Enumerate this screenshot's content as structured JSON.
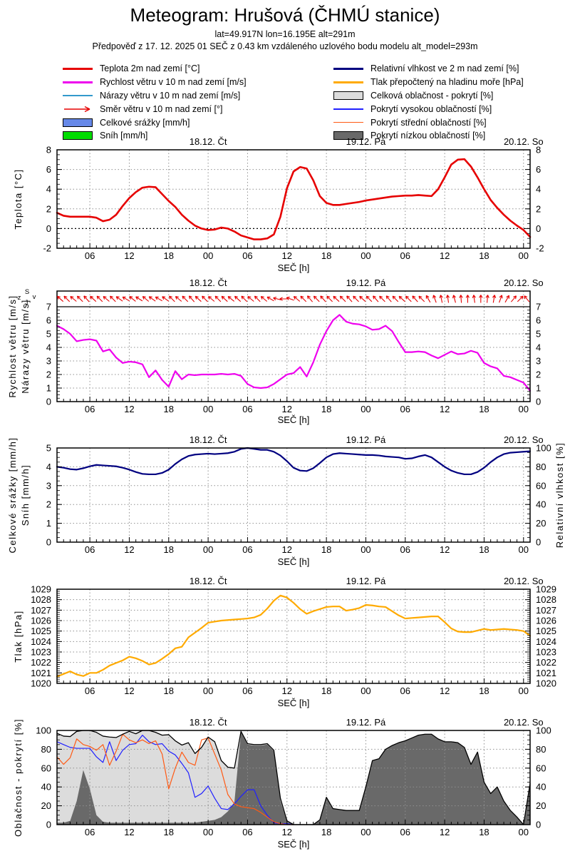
{
  "header": {
    "title": "Meteogram: Hrušová (ČHMÚ stanice)",
    "subtitle1": "lat=49.917N lon=16.195E alt=291m",
    "subtitle2": "Předpověď z 17. 12. 2025 01 SEČ z 0.43 km vzdáleného uzlového bodu modelu alt_model=293m"
  },
  "legend": {
    "left": [
      {
        "key": "temperature-2m",
        "label": "Teplota 2m nad zemí [°C]",
        "type": "line",
        "color": "#e60000",
        "thick": true
      },
      {
        "key": "wind-speed-10m",
        "label": "Rychlost větru v 10 m nad zemí [m/s]",
        "type": "line",
        "color": "#ee00ee",
        "thick": true
      },
      {
        "key": "wind-gusts-10m",
        "label": "Nárazy větru v 10 m nad zemí [m/s]",
        "type": "line",
        "color": "#3399cc",
        "thick": false
      },
      {
        "key": "wind-direction-10m",
        "label": "Směr větru v 10 m nad zemí [°]",
        "type": "arrow",
        "color": "#e60000"
      },
      {
        "key": "total-precipitation",
        "label": "Celkové srážky [mm/h]",
        "type": "box",
        "color": "#6688e8"
      },
      {
        "key": "snow",
        "label": "Sníh [mm/h]",
        "type": "box",
        "color": "#00dd00"
      }
    ],
    "right": [
      {
        "key": "relative-humidity-2m",
        "label": "Relativní vlhkost ve 2 m nad zemí [%]",
        "type": "line",
        "color": "#000080",
        "thick": true
      },
      {
        "key": "sea-level-pressure",
        "label": "Tlak přepočtený na hladinu moře [hPa]",
        "type": "line",
        "color": "#ffaa00",
        "thick": true
      },
      {
        "key": "total-cloud-cover",
        "label": "Celková oblačnost - pokrytí [%]",
        "type": "box",
        "color": "#dcdcdc"
      },
      {
        "key": "high-cloud-cover",
        "label": "Pokrytí vysokou oblačností [%]",
        "type": "line",
        "color": "#2020ff",
        "thick": false
      },
      {
        "key": "middle-cloud-cover",
        "label": "Pokrytí střední oblačností [%]",
        "type": "line",
        "color": "#ff5a14",
        "thick": false
      },
      {
        "key": "low-cloud-cover",
        "label": "Pokrytí nízkou oblačností [%]",
        "type": "box",
        "color": "#696969"
      }
    ]
  },
  "time_axis": {
    "xlabel": "SEČ [h]",
    "hours_total": 72,
    "tick_labels": [
      "06",
      "12",
      "18",
      "00",
      "06",
      "12",
      "18",
      "00",
      "06",
      "12",
      "18",
      "00"
    ],
    "day_labels": [
      {
        "label": "18.12. Čt",
        "hour": 23
      },
      {
        "label": "19.12. Pá",
        "hour": 47
      },
      {
        "label": "20.12. So",
        "hour": 71
      }
    ]
  },
  "chart_data": [
    {
      "name": "temperature",
      "type": "line",
      "ylabel_left": [
        "Teplota [°C]"
      ],
      "ylim": [
        -2,
        8
      ],
      "yticks": [
        -2,
        0,
        2,
        4,
        6,
        8
      ],
      "grid_y": [
        2,
        4,
        6
      ],
      "zero_line": 0,
      "series": [
        {
          "key": "temperature-2m",
          "name": "Teplota 2m nad zemí [°C]",
          "color": "#e60000",
          "width": 2.6,
          "start_h": 0,
          "step_h": 1,
          "values": [
            1.6,
            1.3,
            1.2,
            1.2,
            1.2,
            1.2,
            1.1,
            0.75,
            0.9,
            1.4,
            2.3,
            3.1,
            3.7,
            4.15,
            4.25,
            4.2,
            3.5,
            2.8,
            2.2,
            1.4,
            0.8,
            0.3,
            0.0,
            -0.15,
            -0.1,
            0.1,
            0.0,
            -0.3,
            -0.7,
            -0.9,
            -1.1,
            -1.1,
            -1.0,
            -0.6,
            1.2,
            4.1,
            5.8,
            6.25,
            6.1,
            4.9,
            3.3,
            2.6,
            2.4,
            2.4,
            2.5,
            2.6,
            2.7,
            2.85,
            2.95,
            3.05,
            3.15,
            3.25,
            3.3,
            3.35,
            3.35,
            3.4,
            3.35,
            3.3,
            4.0,
            5.2,
            6.5,
            7.0,
            7.05,
            6.3,
            5.2,
            4.0,
            2.9,
            2.1,
            1.4,
            0.8,
            0.3,
            -0.15,
            -0.85
          ]
        }
      ]
    },
    {
      "name": "wind",
      "type": "line",
      "ylabel_left": [
        "Rychlost větru [m/s]",
        "Nárazy větru [m/s]"
      ],
      "ylim": [
        0,
        7
      ],
      "yticks": [
        0,
        1,
        2,
        3,
        4,
        5,
        6,
        7
      ],
      "grid_y": [
        1,
        2,
        3,
        4,
        5,
        6
      ],
      "top_line": 7,
      "compass": {
        "n": "S",
        "s": "J",
        "e": "v",
        "w": "z"
      },
      "wind_dir_deg": [
        -48,
        -45,
        -50,
        -45,
        -42,
        -48,
        -45,
        -50,
        -45,
        -55,
        -60,
        -52,
        -58,
        -50,
        -55,
        -60,
        -55,
        -45,
        -50,
        -45,
        -42,
        -48,
        -45,
        -50,
        -45,
        -48,
        -52,
        -48,
        -45,
        -50,
        -45,
        -50,
        -60,
        -75,
        -90,
        -70,
        -50,
        -45,
        -40,
        -45,
        -42,
        -45,
        -48,
        -45,
        -42,
        -45,
        -48,
        -45,
        -42,
        -45,
        -40,
        -45,
        -48,
        -45,
        -42,
        -45,
        -30,
        -20,
        -12,
        -8,
        -15,
        -5,
        0,
        -8,
        0,
        5,
        10,
        20,
        30,
        40,
        45,
        -40
      ],
      "series": [
        {
          "key": "wind-speed-10m",
          "name": "Rychlost větru v 10 m nad zemí [m/s]",
          "color": "#ee00ee",
          "width": 2.2,
          "start_h": 0,
          "step_h": 1,
          "values": [
            5.6,
            5.35,
            5.0,
            4.45,
            4.55,
            4.6,
            4.5,
            3.7,
            3.85,
            3.25,
            2.85,
            2.95,
            2.9,
            2.75,
            1.8,
            2.3,
            1.6,
            1.1,
            2.25,
            1.65,
            2.0,
            1.95,
            2.0,
            2.0,
            2.0,
            2.05,
            2.0,
            2.05,
            1.9,
            1.3,
            1.05,
            1.0,
            1.05,
            1.3,
            1.65,
            2.0,
            2.1,
            2.55,
            1.85,
            2.9,
            4.2,
            5.2,
            6.0,
            6.4,
            5.9,
            5.75,
            5.7,
            5.55,
            5.3,
            5.35,
            5.6,
            5.2,
            4.4,
            3.65,
            3.65,
            3.7,
            3.65,
            3.4,
            3.2,
            3.45,
            3.7,
            3.5,
            3.55,
            3.75,
            3.6,
            2.85,
            2.6,
            2.45,
            1.9,
            1.8,
            1.6,
            1.4,
            0.8
          ]
        }
      ]
    },
    {
      "name": "precipitation-humidity",
      "type": "line",
      "ylabel_left": [
        "Celkové srážky [mm/h]",
        "Sníh [mm/h]"
      ],
      "ylabel_right": "Relativní vlhkost [%]",
      "ylim": [
        0,
        5
      ],
      "ylim_right": [
        0,
        100
      ],
      "yticks": [
        0,
        1,
        2,
        3,
        4,
        5
      ],
      "yticks_right": [
        0,
        20,
        40,
        60,
        80,
        100
      ],
      "grid_y": [
        1,
        2,
        3,
        4
      ],
      "series": [
        {
          "key": "relative-humidity-2m",
          "name": "Relativní vlhkost ve 2 m nad zemí [%]",
          "axis": "right",
          "color": "#000080",
          "width": 2.2,
          "start_h": 0,
          "step_h": 1,
          "values": [
            80,
            79,
            77.5,
            77,
            78.5,
            80.5,
            82,
            81.5,
            81,
            80.5,
            79,
            77,
            74.5,
            72.5,
            72,
            72,
            73.5,
            77,
            83,
            88,
            91.5,
            93,
            93.5,
            94,
            93.5,
            94,
            94.5,
            96,
            99,
            100,
            99,
            98,
            98,
            96,
            92,
            86,
            79,
            76,
            75.5,
            78.5,
            84,
            90,
            93.5,
            94.5,
            94,
            93.5,
            93,
            92.5,
            92.5,
            92,
            91,
            90.5,
            90,
            88.5,
            89,
            91,
            92.5,
            90,
            85,
            80,
            76,
            73.5,
            72,
            72,
            74.5,
            79,
            85,
            90,
            93.5,
            95,
            95.5,
            96,
            96.5
          ]
        }
      ]
    },
    {
      "name": "pressure",
      "type": "line",
      "ylabel_left": [
        "Tlak [hPa]"
      ],
      "ylim": [
        1020,
        1029
      ],
      "yticks": [
        1020,
        1021,
        1022,
        1023,
        1024,
        1025,
        1026,
        1027,
        1028,
        1029
      ],
      "grid_y": [
        1021,
        1022,
        1023,
        1024,
        1025,
        1026,
        1027,
        1028
      ],
      "series": [
        {
          "key": "sea-level-pressure",
          "name": "Tlak přepočtený na hladinu moře [hPa]",
          "color": "#ffaa00",
          "width": 2.2,
          "start_h": 0,
          "step_h": 1,
          "values": [
            1020.65,
            1020.9,
            1021.15,
            1020.85,
            1020.7,
            1021.0,
            1021.0,
            1021.3,
            1021.7,
            1021.95,
            1022.2,
            1022.55,
            1022.4,
            1022.15,
            1021.8,
            1021.95,
            1022.35,
            1022.8,
            1023.35,
            1023.5,
            1024.4,
            1024.85,
            1025.3,
            1025.8,
            1025.9,
            1026.0,
            1026.05,
            1026.1,
            1026.15,
            1026.2,
            1026.3,
            1026.55,
            1027.15,
            1027.9,
            1028.4,
            1028.2,
            1027.7,
            1027.1,
            1026.65,
            1026.9,
            1027.1,
            1027.3,
            1027.35,
            1027.35,
            1026.95,
            1027.05,
            1027.2,
            1027.5,
            1027.45,
            1027.35,
            1027.3,
            1026.9,
            1026.5,
            1026.2,
            1026.25,
            1026.3,
            1026.35,
            1026.4,
            1026.4,
            1025.85,
            1025.25,
            1024.95,
            1024.9,
            1024.9,
            1025.05,
            1025.2,
            1025.1,
            1025.15,
            1025.2,
            1025.15,
            1025.1,
            1025.0,
            1024.55
          ]
        }
      ]
    },
    {
      "name": "cloud-cover",
      "type": "area",
      "ylabel_left": [
        "Oblačnost - pokrytí [%]"
      ],
      "ylim": [
        0,
        100
      ],
      "yticks": [
        0,
        20,
        40,
        60,
        80,
        100
      ],
      "grid_y": [
        20,
        40,
        60,
        80
      ],
      "series": [
        {
          "key": "total-cloud-cover",
          "name": "Celková oblačnost - pokrytí [%]",
          "type": "area",
          "fill": "#dcdcdc",
          "outline": "#000000",
          "width": 1.3,
          "start_h": 0,
          "step_h": 1,
          "values": [
            97,
            94,
            93.5,
            99,
            100,
            100,
            98,
            94,
            93,
            92.5,
            96,
            99,
            96.5,
            100,
            100,
            98,
            95,
            95.5,
            89,
            84.5,
            87,
            75.5,
            82,
            93,
            88,
            68,
            61,
            60,
            99,
            86,
            85,
            85,
            86,
            79,
            28,
            4,
            0,
            0,
            0,
            0,
            5,
            29,
            17,
            16,
            15,
            15,
            15,
            40,
            68,
            70,
            80,
            84,
            87,
            89,
            92,
            95,
            96,
            96,
            91,
            88,
            88,
            87,
            82,
            64,
            77,
            45,
            33,
            40,
            25,
            15,
            8,
            0,
            44
          ]
        },
        {
          "key": "low-cloud-cover",
          "name": "Pokrytí nízkou oblačností [%]",
          "type": "area",
          "fill": "#696969",
          "start_h": 0,
          "step_h": 1,
          "values": [
            2,
            2,
            4,
            25,
            58,
            38,
            10,
            3,
            2,
            2,
            2,
            2,
            2,
            2,
            2,
            2,
            2,
            2,
            2,
            2,
            2,
            2,
            3,
            4,
            5,
            8,
            14,
            24,
            98,
            85,
            84,
            84,
            85,
            78,
            25,
            3,
            0,
            0,
            0,
            0,
            5,
            29,
            17,
            16,
            15,
            15,
            15,
            40,
            68,
            70,
            80,
            84,
            87,
            89,
            92,
            95,
            96,
            96,
            91,
            88,
            88,
            87,
            82,
            64,
            77,
            45,
            33,
            40,
            25,
            15,
            8,
            0,
            44
          ]
        },
        {
          "key": "high-cloud-cover",
          "name": "Pokrytí vysokou oblačností [%]",
          "type": "line",
          "color": "#2020ff",
          "width": 1.2,
          "start_h": 0,
          "step_h": 1,
          "values": [
            88,
            85,
            82,
            81,
            81,
            81,
            72,
            66,
            88,
            68,
            79,
            85,
            86,
            95,
            88,
            85,
            86,
            78,
            74,
            65,
            55,
            29,
            33,
            41,
            28,
            17,
            16,
            22,
            30,
            37,
            37,
            20,
            10,
            2,
            1,
            1,
            0
          ]
        },
        {
          "key": "middle-cloud-cover",
          "name": "Pokrytí střední oblačností [%]",
          "type": "line",
          "color": "#ff5a14",
          "width": 1.2,
          "start_h": 0,
          "step_h": 1,
          "values": [
            72,
            64,
            71,
            91,
            85,
            83,
            79,
            85,
            63,
            78,
            96,
            90,
            87,
            90,
            86,
            89,
            75,
            38,
            60,
            77,
            66,
            63,
            90,
            92,
            75,
            58,
            32,
            22,
            19,
            18,
            17,
            13,
            8,
            3,
            1,
            0,
            0
          ]
        }
      ]
    }
  ]
}
